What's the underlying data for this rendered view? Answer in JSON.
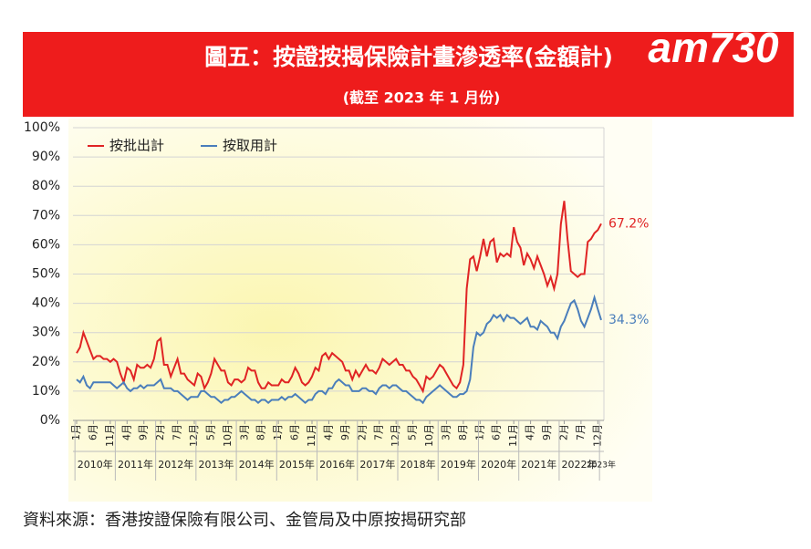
{
  "header": {
    "title": "圖五：按證按揭保險計畫滲透率(金額計)",
    "subtitle": "(截至 2023 年 1 月份)",
    "logo": "am730"
  },
  "chart_data": {
    "type": "line",
    "categories": [
      "1月",
      null,
      null,
      null,
      null,
      "6月",
      null,
      null,
      null,
      null,
      "11月",
      null,
      null,
      null,
      null,
      "4月",
      null,
      null,
      null,
      null,
      "9月",
      null,
      null,
      null,
      null,
      "2月",
      null,
      null,
      null,
      null,
      "7月",
      null,
      null,
      null,
      null,
      "12月",
      null,
      null,
      null,
      null,
      "5月",
      null,
      null,
      null,
      null,
      "10月",
      null,
      null,
      null,
      null,
      "3月",
      null,
      null,
      null,
      null,
      "8月",
      null,
      null,
      null,
      null,
      "1月",
      null,
      null,
      null,
      null,
      "6月",
      null,
      null,
      null,
      null,
      "11月",
      null,
      null,
      null,
      null,
      "4月",
      null,
      null,
      null,
      null,
      "9月",
      null,
      null,
      null,
      null,
      "2月",
      null,
      null,
      null,
      null,
      "7月",
      null,
      null,
      null,
      null,
      "12月",
      null,
      null,
      null,
      null,
      "5月",
      null,
      null,
      null,
      null,
      "10月",
      null,
      null,
      null,
      null,
      "3月",
      null,
      null,
      null,
      null,
      "8月",
      null,
      null,
      null,
      null,
      "1月",
      null,
      null,
      null,
      null,
      "6月",
      null,
      null,
      null,
      null,
      "11月",
      null,
      null,
      null,
      null,
      "4月",
      null,
      null,
      null,
      null,
      "9月",
      null,
      null,
      null,
      null,
      "2月",
      null,
      null,
      null,
      null,
      "7月",
      null,
      null,
      null,
      null,
      "12月",
      null
    ],
    "year_labels": [
      "2010年",
      "2011年",
      "2012年",
      "2013年",
      "2014年",
      "2015年",
      "2016年",
      "2017年",
      "2018年",
      "2019年",
      "2020年",
      "2021年",
      "2022年",
      "2023年"
    ],
    "series": [
      {
        "name": "按批出計",
        "color": "#e02424",
        "end_label": "67.2%",
        "values": [
          23,
          25,
          30,
          27,
          24,
          21,
          22,
          22,
          21,
          21,
          20,
          21,
          20,
          16,
          13,
          18,
          17,
          14,
          19,
          18,
          18,
          19,
          18,
          21,
          27,
          28,
          19,
          19,
          15,
          18,
          21,
          16,
          16,
          14,
          13,
          12,
          16,
          15,
          11,
          13,
          16,
          21,
          19,
          17,
          17,
          13,
          12,
          14,
          14,
          13,
          14,
          18,
          17,
          17,
          13,
          11,
          11,
          13,
          12,
          12,
          12,
          14,
          13,
          13,
          15,
          18,
          16,
          13,
          12,
          13,
          15,
          18,
          17,
          22,
          23,
          21,
          23,
          22,
          21,
          20,
          17,
          17,
          14,
          17,
          15,
          17,
          19,
          17,
          17,
          16,
          18,
          21,
          20,
          19,
          20,
          21,
          19,
          19,
          17,
          17,
          15,
          14,
          12,
          10,
          15,
          14,
          15,
          17,
          19,
          18,
          16,
          14,
          12,
          11,
          13,
          19,
          45,
          55,
          56,
          51,
          56,
          62,
          56,
          61,
          62,
          54,
          57,
          56,
          57,
          56,
          66,
          61,
          59,
          53,
          57,
          55,
          52,
          56,
          53,
          50,
          46,
          49,
          45,
          50,
          67,
          75,
          62,
          51,
          50,
          49,
          50,
          50,
          61,
          62,
          64,
          65,
          67.2
        ]
      },
      {
        "name": "按取用計",
        "color": "#4a7ebb",
        "end_label": "34.3%",
        "values": [
          14,
          13,
          15,
          12,
          11,
          13,
          13,
          13,
          13,
          13,
          13,
          12,
          11,
          12,
          13,
          11,
          10,
          11,
          11,
          12,
          11,
          12,
          12,
          12,
          13,
          14,
          11,
          11,
          11,
          10,
          10,
          9,
          8,
          7,
          8,
          8,
          8,
          10,
          10,
          9,
          8,
          8,
          7,
          6,
          7,
          7,
          8,
          8,
          9,
          10,
          9,
          8,
          7,
          7,
          6,
          7,
          7,
          6,
          7,
          7,
          7,
          8,
          7,
          8,
          8,
          9,
          8,
          7,
          6,
          7,
          7,
          9,
          10,
          10,
          9,
          11,
          11,
          13,
          14,
          13,
          12,
          12,
          10,
          10,
          10,
          11,
          11,
          10,
          10,
          9,
          11,
          12,
          12,
          11,
          12,
          12,
          11,
          10,
          10,
          9,
          8,
          7,
          7,
          6,
          8,
          9,
          10,
          11,
          12,
          11,
          10,
          9,
          8,
          8,
          9,
          9,
          10,
          14,
          25,
          30,
          29,
          30,
          33,
          34,
          36,
          35,
          36,
          34,
          36,
          35,
          35,
          34,
          33,
          34,
          35,
          32,
          32,
          31,
          34,
          33,
          32,
          30,
          30,
          28,
          32,
          34,
          37,
          40,
          41,
          38,
          34,
          32,
          35,
          38,
          42,
          38,
          34.3
        ]
      }
    ],
    "ylim": [
      0,
      100
    ],
    "yticks": [
      {
        "value": 0,
        "label": "0%"
      },
      {
        "value": 10,
        "label": "10%"
      },
      {
        "value": 20,
        "label": "20%"
      },
      {
        "value": 30,
        "label": "30%"
      },
      {
        "value": 40,
        "label": "40%"
      },
      {
        "value": 50,
        "label": "50%"
      },
      {
        "value": 60,
        "label": "60%"
      },
      {
        "value": 70,
        "label": "70%"
      },
      {
        "value": 80,
        "label": "80%"
      },
      {
        "value": 90,
        "label": "90%"
      },
      {
        "value": 100,
        "label": "100%"
      }
    ],
    "grid": true
  },
  "footer": {
    "source": "資料來源：香港按證保險有限公司、金管局及中原按揭研究部"
  }
}
